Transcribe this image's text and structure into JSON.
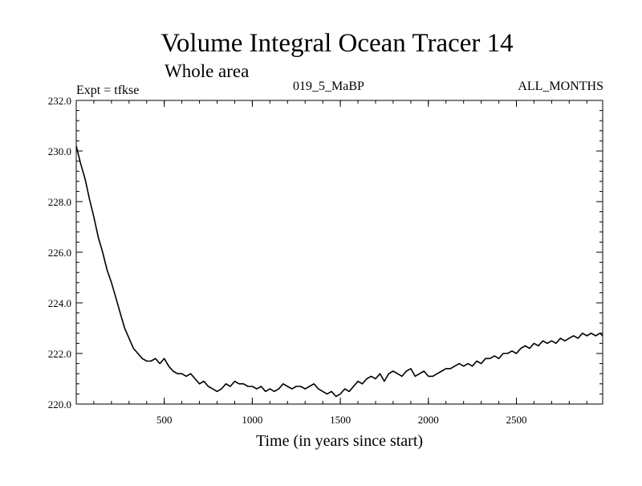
{
  "chart_data": {
    "type": "line",
    "title": "Volume Integral Ocean Tracer 14",
    "subtitle": "Whole area",
    "expt_label": "Expt = tfkse",
    "run_label": "019_5_MaBP",
    "period_label": "ALL_MONTHS",
    "xlabel": "Time (in years since start)",
    "ylabel": "",
    "xlim": [
      0,
      2990
    ],
    "ylim": [
      220.0,
      232.0
    ],
    "x_ticks": [
      500,
      1000,
      1500,
      2000,
      2500
    ],
    "x_tick_labels": [
      "500",
      "1000",
      "1500",
      "2000",
      "2500"
    ],
    "y_ticks": [
      220.0,
      222.0,
      224.0,
      226.0,
      228.0,
      230.0,
      232.0
    ],
    "y_tick_labels": [
      "220.0",
      "222.0",
      "224.0",
      "226.0",
      "228.0",
      "230.0",
      "232.0"
    ],
    "grid": false,
    "series": [
      {
        "name": "Volume Integral Ocean Tracer 14",
        "color": "#000000",
        "x": [
          0,
          25,
          50,
          75,
          100,
          125,
          150,
          175,
          200,
          225,
          250,
          275,
          300,
          325,
          350,
          375,
          400,
          425,
          450,
          475,
          500,
          525,
          550,
          575,
          600,
          625,
          650,
          675,
          700,
          725,
          750,
          775,
          800,
          825,
          850,
          875,
          900,
          925,
          950,
          975,
          1000,
          1025,
          1050,
          1075,
          1100,
          1125,
          1150,
          1175,
          1200,
          1225,
          1250,
          1275,
          1300,
          1325,
          1350,
          1375,
          1400,
          1425,
          1450,
          1475,
          1500,
          1525,
          1550,
          1575,
          1600,
          1625,
          1650,
          1675,
          1700,
          1725,
          1750,
          1775,
          1800,
          1825,
          1850,
          1875,
          1900,
          1925,
          1950,
          1975,
          2000,
          2025,
          2050,
          2075,
          2100,
          2125,
          2150,
          2175,
          2200,
          2225,
          2250,
          2275,
          2300,
          2325,
          2350,
          2375,
          2400,
          2425,
          2450,
          2475,
          2500,
          2525,
          2550,
          2575,
          2600,
          2625,
          2650,
          2675,
          2700,
          2725,
          2750,
          2775,
          2800,
          2825,
          2850,
          2875,
          2900,
          2925,
          2950,
          2975,
          2990
        ],
        "values": [
          230.2,
          229.5,
          228.9,
          228.1,
          227.4,
          226.6,
          226.0,
          225.3,
          224.8,
          224.2,
          223.6,
          223.0,
          222.6,
          222.2,
          222.0,
          221.8,
          221.7,
          221.7,
          221.8,
          221.6,
          221.8,
          221.5,
          221.3,
          221.2,
          221.2,
          221.1,
          221.2,
          221.0,
          220.8,
          220.9,
          220.7,
          220.6,
          220.5,
          220.6,
          220.8,
          220.7,
          220.9,
          220.8,
          220.8,
          220.7,
          220.7,
          220.6,
          220.7,
          220.5,
          220.6,
          220.5,
          220.6,
          220.8,
          220.7,
          220.6,
          220.7,
          220.7,
          220.6,
          220.7,
          220.8,
          220.6,
          220.5,
          220.4,
          220.5,
          220.3,
          220.4,
          220.6,
          220.5,
          220.7,
          220.9,
          220.8,
          221.0,
          221.1,
          221.0,
          221.2,
          220.9,
          221.2,
          221.3,
          221.2,
          221.1,
          221.3,
          221.4,
          221.1,
          221.2,
          221.3,
          221.1,
          221.1,
          221.2,
          221.3,
          221.4,
          221.4,
          221.5,
          221.6,
          221.5,
          221.6,
          221.5,
          221.7,
          221.6,
          221.8,
          221.8,
          221.9,
          221.8,
          222.0,
          222.0,
          222.1,
          222.0,
          222.2,
          222.3,
          222.2,
          222.4,
          222.3,
          222.5,
          222.4,
          222.5,
          222.4,
          222.6,
          222.5,
          222.6,
          222.7,
          222.6,
          222.8,
          222.7,
          222.8,
          222.7,
          222.8,
          222.7
        ]
      }
    ]
  }
}
